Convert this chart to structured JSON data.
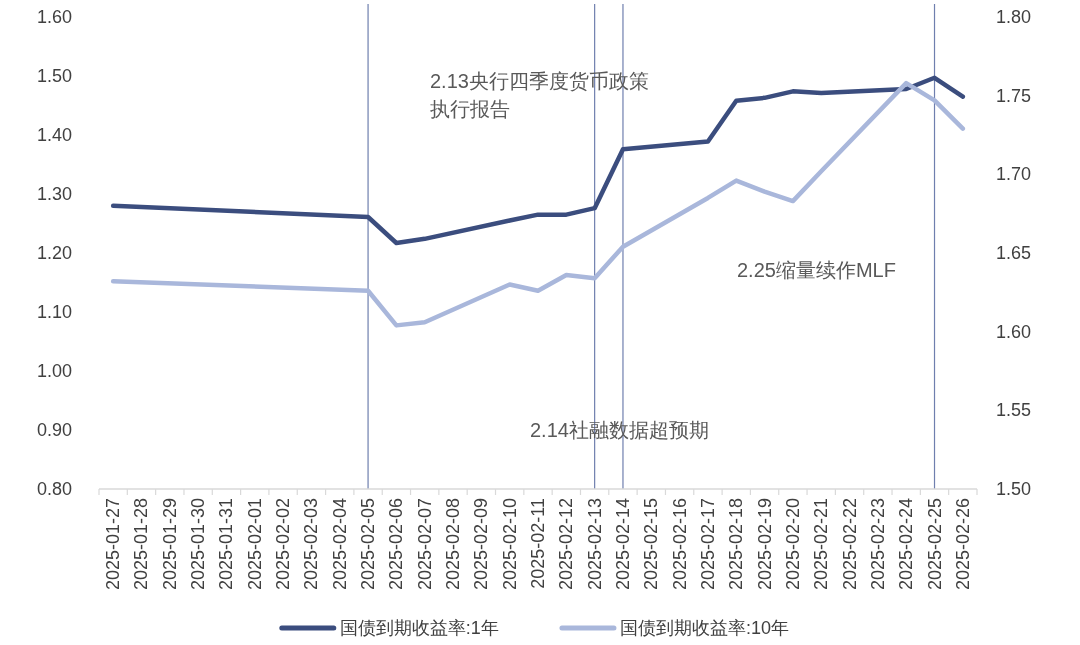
{
  "chart_data": {
    "type": "line",
    "x": [
      "2025-01-27",
      "2025-02-05",
      "2025-02-06",
      "2025-02-07",
      "2025-02-10",
      "2025-02-11",
      "2025-02-12",
      "2025-02-13",
      "2025-02-14",
      "2025-02-17",
      "2025-02-18",
      "2025-02-19",
      "2025-02-20",
      "2025-02-21",
      "2025-02-24",
      "2025-02-25",
      "2025-02-26"
    ],
    "series": [
      {
        "name": "国债到期收益率:1年",
        "color": "#3b4d7e",
        "values": [
          1.28,
          1.261,
          1.217,
          1.224,
          1.255,
          1.265,
          1.265,
          1.276,
          1.376,
          1.389,
          1.458,
          1.463,
          1.474,
          1.471,
          1.478,
          1.497,
          1.465
        ]
      },
      {
        "name": "国债到期收益率:10年",
        "color": "#a9b7db",
        "axis": "y2",
        "values": [
          1.632,
          1.626,
          1.604,
          1.606,
          1.63,
          1.626,
          1.636,
          1.634,
          1.654,
          1.685,
          1.696,
          1.689,
          1.683,
          1.702,
          1.758,
          1.747,
          1.729
        ]
      }
    ],
    "xlim": [
      "2025-01-26T12:00",
      "2025-02-26T12:00"
    ],
    "xticks": [
      "2025-01-27",
      "2025-01-28",
      "2025-01-29",
      "2025-01-30",
      "2025-01-31",
      "2025-02-01",
      "2025-02-02",
      "2025-02-03",
      "2025-02-04",
      "2025-02-05",
      "2025-02-06",
      "2025-02-07",
      "2025-02-08",
      "2025-02-09",
      "2025-02-10",
      "2025-02-11",
      "2025-02-12",
      "2025-02-13",
      "2025-02-14",
      "2025-02-15",
      "2025-02-16",
      "2025-02-17",
      "2025-02-18",
      "2025-02-19",
      "2025-02-20",
      "2025-02-21",
      "2025-02-22",
      "2025-02-23",
      "2025-02-24",
      "2025-02-25",
      "2025-02-26"
    ],
    "ylim": [
      0.8,
      1.6
    ],
    "yticks": [
      {
        "value": 0.8,
        "label": "0.80"
      },
      {
        "value": 0.9,
        "label": "0.90"
      },
      {
        "value": 1.0,
        "label": "1.00"
      },
      {
        "value": 1.1,
        "label": "1.10"
      },
      {
        "value": 1.2,
        "label": "1.20"
      },
      {
        "value": 1.3,
        "label": "1.30"
      },
      {
        "value": 1.4,
        "label": "1.40"
      },
      {
        "value": 1.5,
        "label": "1.50"
      },
      {
        "value": 1.6,
        "label": "1.60"
      }
    ],
    "y2lim": [
      1.5,
      1.8
    ],
    "y2ticks": [
      {
        "value": 1.5,
        "label": "1.50"
      },
      {
        "value": 1.55,
        "label": "1.55"
      },
      {
        "value": 1.6,
        "label": "1.60"
      },
      {
        "value": 1.65,
        "label": "1.65"
      },
      {
        "value": 1.7,
        "label": "1.70"
      },
      {
        "value": 1.75,
        "label": "1.75"
      },
      {
        "value": 1.8,
        "label": "1.80"
      }
    ],
    "ref_lines": [
      {
        "axis": "x",
        "value": "2025-02-05",
        "color": "#6f7fae"
      },
      {
        "axis": "x",
        "value": "2025-02-13",
        "color": "#6f7fae"
      },
      {
        "axis": "x",
        "value": "2025-02-14",
        "color": "#6f7fae"
      },
      {
        "axis": "x",
        "value": "2025-02-25",
        "color": "#6f7fae"
      }
    ],
    "annotations": [
      "2.13央行四季度货币政策执行报告",
      "2.14社融数据超预期",
      "2.25缩量续作MLF"
    ],
    "legend": "bottom"
  }
}
